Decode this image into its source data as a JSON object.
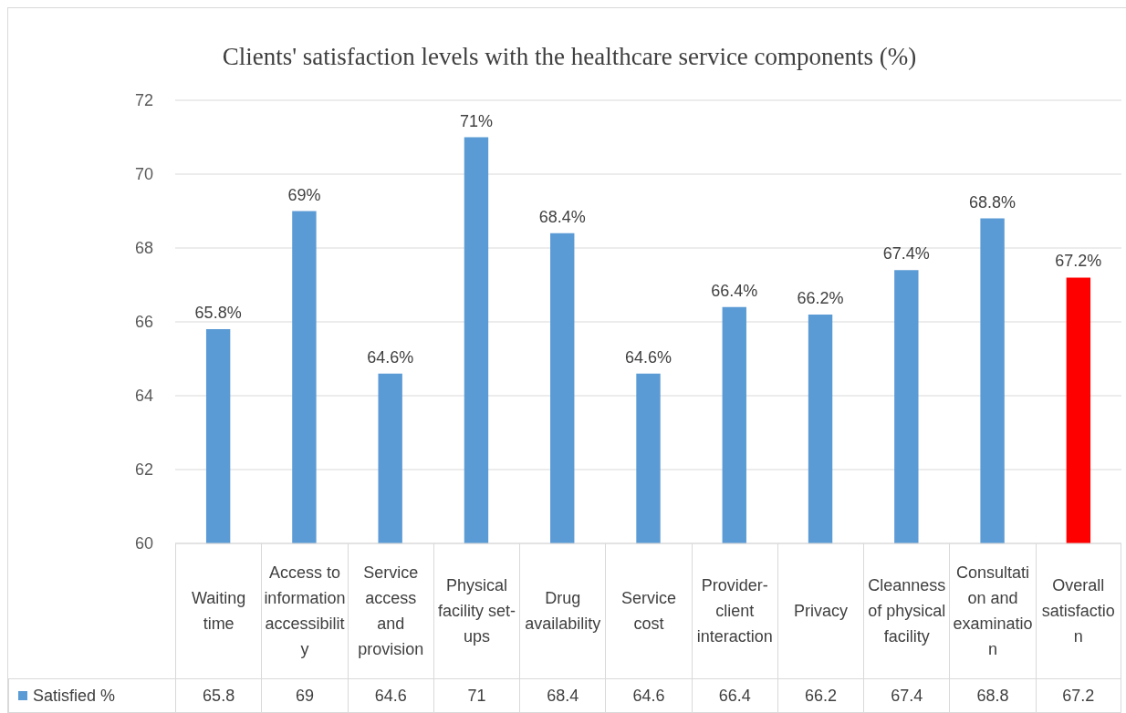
{
  "chart_data": {
    "type": "bar",
    "title": "Clients' satisfaction levels with the healthcare service components (%)",
    "categories": [
      "Waiting time",
      "Access to information accessibility",
      "Service access and provision",
      "Physical facility set-ups",
      "Drug availability",
      "Service cost",
      "Provider-client interaction",
      "Privacy",
      "Cleanness of physical facility",
      "Consultation and examination",
      "Overall satisfaction"
    ],
    "series": [
      {
        "name": "Satisfied %",
        "color": "#5b9bd5",
        "colors": [
          "#5b9bd5",
          "#5b9bd5",
          "#5b9bd5",
          "#5b9bd5",
          "#5b9bd5",
          "#5b9bd5",
          "#5b9bd5",
          "#5b9bd5",
          "#5b9bd5",
          "#5b9bd5",
          "#ff0000"
        ],
        "values": [
          65.8,
          69,
          64.6,
          71,
          68.4,
          64.6,
          66.4,
          66.2,
          67.4,
          68.8,
          67.2
        ]
      }
    ],
    "annotations": [
      {
        "text": "65.8%",
        "x": "Waiting time",
        "y": 65.8
      },
      {
        "text": "69%",
        "x": "Access to information accessibility",
        "y": 69
      },
      {
        "text": "64.6%",
        "x": "Service access and provision",
        "y": 64.6
      },
      {
        "text": "71%",
        "x": "Physical facility set-ups",
        "y": 71
      },
      {
        "text": "68.4%",
        "x": "Drug availability",
        "y": 68.4
      },
      {
        "text": "64.6%",
        "x": "Service cost",
        "y": 64.6
      },
      {
        "text": "66.4%",
        "x": "Provider-client interaction",
        "y": 66.4
      },
      {
        "text": "66.2%",
        "x": "Privacy",
        "y": 66.2
      },
      {
        "text": "67.4%",
        "x": "Cleanness of physical facility",
        "y": 67.4
      },
      {
        "text": "68.8%",
        "x": "Consultation and examination",
        "y": 68.8
      },
      {
        "text": "67.2%",
        "x": "Overall satisfaction",
        "y": 67.2
      }
    ],
    "ylim": [
      60,
      72
    ],
    "yticks": [
      60,
      62,
      64,
      66,
      68,
      70,
      72
    ],
    "grid": "y",
    "legend": "bottom",
    "data_labels": true
  }
}
